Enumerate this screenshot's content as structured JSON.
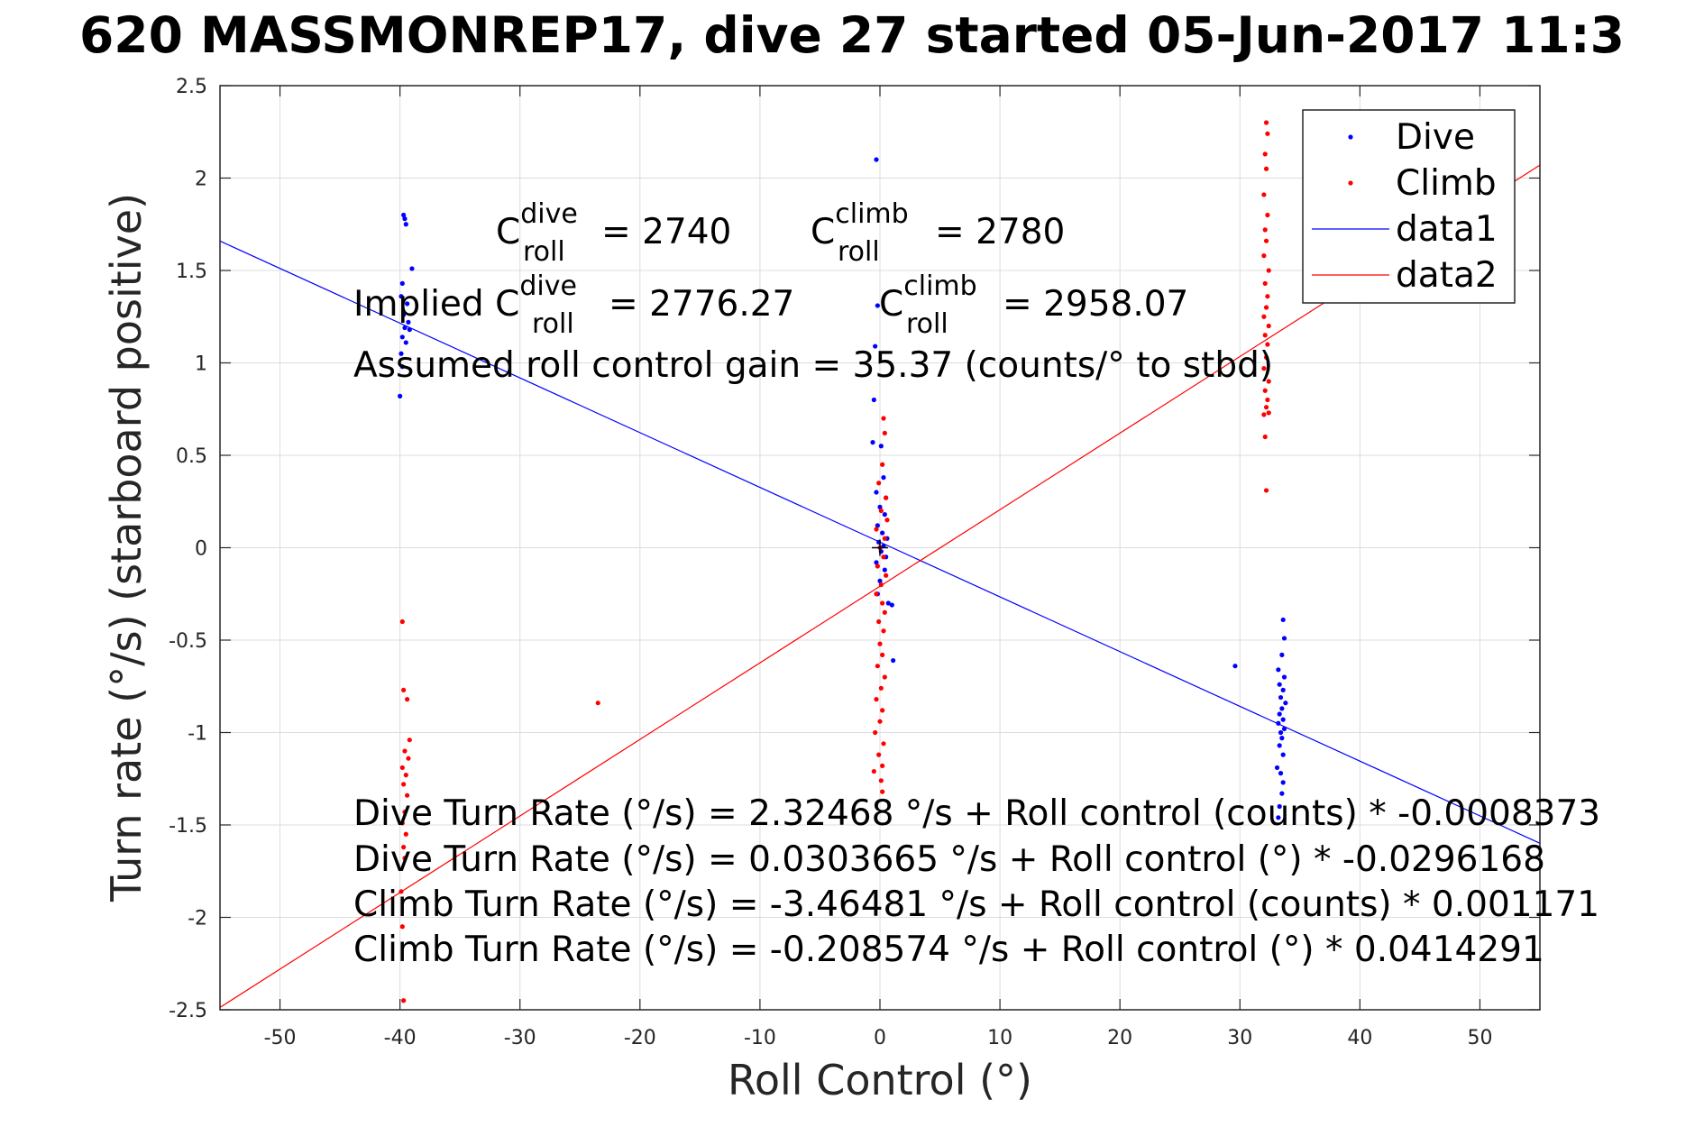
{
  "chart_data": {
    "type": "scatter",
    "title": "620 MASSMONREP17, dive 27 started 05-Jun-2017 11:3",
    "xlabel": "Roll Control (°)",
    "ylabel": "Turn rate (°/s) (starboard positive)",
    "xlim": [
      -55,
      55
    ],
    "ylim": [
      -2.5,
      2.5
    ],
    "xticks": [
      "-50",
      "-40",
      "-30",
      "-20",
      "-10",
      "0",
      "10",
      "20",
      "30",
      "40",
      "50"
    ],
    "yticks": [
      "2.5",
      "2",
      "1.5",
      "1",
      "0.5",
      "0",
      "-0.5",
      "-1",
      "-1.5",
      "-2",
      "-2.5"
    ],
    "grid": true,
    "legend_position": "top-right",
    "legend": [
      "Dive",
      "Climb",
      "data1",
      "data2"
    ],
    "series": [
      {
        "name": "Dive",
        "kind": "points",
        "color": "#0000ff",
        "points": [
          [
            -39.7,
            1.8
          ],
          [
            -39.6,
            1.78
          ],
          [
            -39.5,
            1.75
          ],
          [
            -39.0,
            1.51
          ],
          [
            -39.8,
            1.43
          ],
          [
            -39.9,
            1.36
          ],
          [
            -39.4,
            1.32
          ],
          [
            -39.7,
            1.26
          ],
          [
            -39.3,
            1.22
          ],
          [
            -39.6,
            1.19
          ],
          [
            -39.2,
            1.18
          ],
          [
            -39.8,
            1.14
          ],
          [
            -39.5,
            1.11
          ],
          [
            -39.9,
            1.05
          ],
          [
            -39.8,
            0.98
          ],
          [
            -40.0,
            0.82
          ],
          [
            -0.3,
            2.1
          ],
          [
            -0.2,
            1.31
          ],
          [
            -0.4,
            1.09
          ],
          [
            -0.5,
            0.8
          ],
          [
            -0.6,
            0.57
          ],
          [
            0.1,
            0.55
          ],
          [
            0.3,
            0.38
          ],
          [
            -0.3,
            0.3
          ],
          [
            0.5,
            0.27
          ],
          [
            0.0,
            0.22
          ],
          [
            0.4,
            0.18
          ],
          [
            -0.2,
            0.12
          ],
          [
            0.2,
            0.08
          ],
          [
            0.6,
            0.05
          ],
          [
            -0.1,
            0.03
          ],
          [
            0.3,
            0.01
          ],
          [
            0.1,
            -0.02
          ],
          [
            0.5,
            -0.05
          ],
          [
            -0.3,
            -0.08
          ],
          [
            0.4,
            -0.12
          ],
          [
            0.0,
            -0.18
          ],
          [
            -0.2,
            -0.25
          ],
          [
            0.7,
            -0.3
          ],
          [
            1.0,
            -0.31
          ],
          [
            1.1,
            -0.61
          ],
          [
            29.6,
            -0.64
          ],
          [
            33.6,
            -0.39
          ],
          [
            33.7,
            -0.49
          ],
          [
            33.5,
            -0.58
          ],
          [
            33.2,
            -0.66
          ],
          [
            33.7,
            -0.7
          ],
          [
            33.3,
            -0.74
          ],
          [
            33.6,
            -0.77
          ],
          [
            33.4,
            -0.81
          ],
          [
            33.8,
            -0.84
          ],
          [
            33.5,
            -0.87
          ],
          [
            33.3,
            -0.9
          ],
          [
            33.6,
            -0.93
          ],
          [
            33.2,
            -0.95
          ],
          [
            33.7,
            -0.98
          ],
          [
            33.4,
            -1.0
          ],
          [
            33.5,
            -1.03
          ],
          [
            33.3,
            -1.07
          ],
          [
            33.6,
            -1.12
          ],
          [
            33.1,
            -1.19
          ],
          [
            33.4,
            -1.22
          ],
          [
            33.6,
            -1.27
          ],
          [
            33.5,
            -1.33
          ],
          [
            33.3,
            -1.4
          ],
          [
            33.2,
            -1.46
          ]
        ]
      },
      {
        "name": "Climb",
        "kind": "points",
        "color": "#ff0000",
        "points": [
          [
            -39.8,
            -0.4
          ],
          [
            -39.7,
            -0.77
          ],
          [
            -39.4,
            -0.82
          ],
          [
            -39.2,
            -1.04
          ],
          [
            -39.6,
            -1.1
          ],
          [
            -39.3,
            -1.14
          ],
          [
            -39.8,
            -1.19
          ],
          [
            -39.5,
            -1.23
          ],
          [
            -39.7,
            -1.28
          ],
          [
            -39.4,
            -1.34
          ],
          [
            -39.6,
            -1.43
          ],
          [
            -39.8,
            -1.49
          ],
          [
            -39.5,
            -1.55
          ],
          [
            -39.7,
            -1.62
          ],
          [
            -39.6,
            -1.68
          ],
          [
            -39.9,
            -1.86
          ],
          [
            -39.8,
            -2.05
          ],
          [
            -39.7,
            -2.45
          ],
          [
            -23.5,
            -0.84
          ],
          [
            0.3,
            0.7
          ],
          [
            0.4,
            0.62
          ],
          [
            0.2,
            0.45
          ],
          [
            -0.1,
            0.35
          ],
          [
            0.5,
            0.27
          ],
          [
            0.1,
            0.2
          ],
          [
            0.6,
            0.15
          ],
          [
            -0.3,
            0.1
          ],
          [
            0.4,
            0.05
          ],
          [
            0.0,
            0.0
          ],
          [
            0.3,
            -0.05
          ],
          [
            -0.2,
            -0.1
          ],
          [
            0.5,
            -0.15
          ],
          [
            0.1,
            -0.2
          ],
          [
            -0.3,
            -0.25
          ],
          [
            0.2,
            -0.3
          ],
          [
            0.4,
            -0.35
          ],
          [
            -0.1,
            -0.4
          ],
          [
            0.3,
            -0.45
          ],
          [
            0.0,
            -0.52
          ],
          [
            0.2,
            -0.58
          ],
          [
            -0.2,
            -0.64
          ],
          [
            0.4,
            -0.7
          ],
          [
            0.1,
            -0.76
          ],
          [
            -0.3,
            -0.82
          ],
          [
            0.2,
            -0.88
          ],
          [
            0.0,
            -0.94
          ],
          [
            -0.4,
            -1.0
          ],
          [
            0.3,
            -1.06
          ],
          [
            -0.1,
            -1.12
          ],
          [
            0.2,
            -1.18
          ],
          [
            -0.5,
            -1.21
          ],
          [
            0.1,
            -1.26
          ],
          [
            0.2,
            -1.32
          ],
          [
            32.2,
            2.3
          ],
          [
            32.3,
            2.24
          ],
          [
            32.1,
            2.13
          ],
          [
            32.2,
            2.05
          ],
          [
            32.0,
            1.91
          ],
          [
            32.3,
            1.8
          ],
          [
            32.1,
            1.72
          ],
          [
            32.2,
            1.66
          ],
          [
            32.0,
            1.58
          ],
          [
            32.4,
            1.5
          ],
          [
            32.1,
            1.43
          ],
          [
            32.3,
            1.36
          ],
          [
            32.2,
            1.3
          ],
          [
            32.0,
            1.25
          ],
          [
            32.4,
            1.2
          ],
          [
            32.1,
            1.15
          ],
          [
            32.3,
            1.1
          ],
          [
            32.2,
            1.03
          ],
          [
            32.0,
            0.97
          ],
          [
            32.4,
            0.9
          ],
          [
            32.1,
            0.85
          ],
          [
            32.3,
            0.8
          ],
          [
            32.2,
            0.76
          ],
          [
            32.4,
            0.73
          ],
          [
            32.0,
            0.72
          ],
          [
            32.1,
            0.6
          ],
          [
            32.2,
            0.31
          ]
        ]
      },
      {
        "name": "data1",
        "kind": "line",
        "color": "#0000ff",
        "x": [
          -55,
          55
        ],
        "y": [
          1.6593,
          -1.5989
        ]
      },
      {
        "name": "data2",
        "kind": "line",
        "color": "#ff0000",
        "x": [
          -55,
          55
        ],
        "y": [
          -2.4872,
          2.07
        ]
      }
    ],
    "annotations": {
      "c_roll_dive_prefix": "C",
      "c_roll_dive_sup": "dive",
      "c_roll_dive_sub": "roll",
      "c_roll_dive_value": "= 2740",
      "c_roll_climb_prefix": "C",
      "c_roll_climb_sup": "climb",
      "c_roll_climb_sub": "roll",
      "c_roll_climb_value": "= 2780",
      "implied_prefix": "Implied C",
      "implied_dive_sup": "dive",
      "implied_dive_sub": "roll",
      "implied_dive_value": "= 2776.27",
      "implied_climb_prefix": "C",
      "implied_climb_sup": "climb",
      "implied_climb_sub": "roll",
      "implied_climb_value": "= 2958.07",
      "gain_line": "Assumed roll control gain = 35.37 (counts/° to stbd)",
      "eq1": "Dive Turn Rate (°/s) = 2.32468 °/s + Roll control (counts) * -0.0008373",
      "eq2": "Dive Turn Rate (°/s) = 0.0303665 °/s + Roll control (°) * -0.0296168",
      "eq3": "Climb Turn Rate (°/s) = -3.46481 °/s + Roll control (counts) * 0.001171",
      "eq4": "Climb Turn Rate (°/s) = -0.208574 °/s + Roll control (°) * 0.0414291"
    },
    "crosshair_marker": [
      0,
      0
    ]
  }
}
